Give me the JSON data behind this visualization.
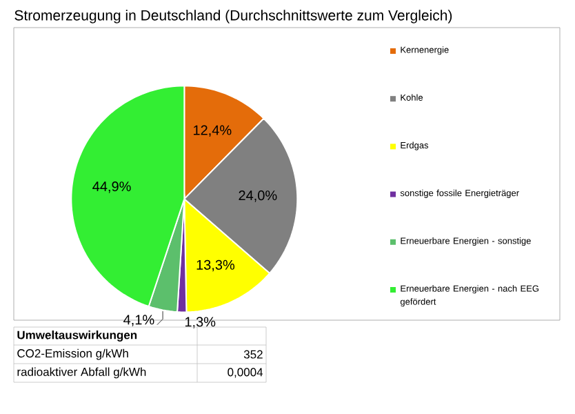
{
  "chart_data": {
    "type": "pie",
    "title": "Stromerzeugung in Deutschland (Durchschnittswerte zum Vergleich)",
    "categories": [
      "Kernenergie",
      "Kohle",
      "Erdgas",
      "sonstige fossile Energieträger",
      "Erneuerbare Energien - sonstige",
      "Erneuerbare Energien - nach EEG gefördert"
    ],
    "values": [
      12.4,
      24.0,
      13.3,
      1.3,
      4.1,
      44.9
    ],
    "colors": [
      "#e46c0a",
      "#808080",
      "#ffff00",
      "#7030a0",
      "#5cbf6c",
      "#33ee33"
    ],
    "value_labels": [
      "12,4%",
      "24,0%",
      "13,3%",
      "1,3%",
      "4,1%",
      "44,9%"
    ],
    "legend": "right",
    "annotations": [
      "Umweltauswirkungen",
      "CO2-Emission g/kWh",
      "352",
      "radioaktiver Abfall g/kWh",
      "0,0004"
    ]
  }
}
